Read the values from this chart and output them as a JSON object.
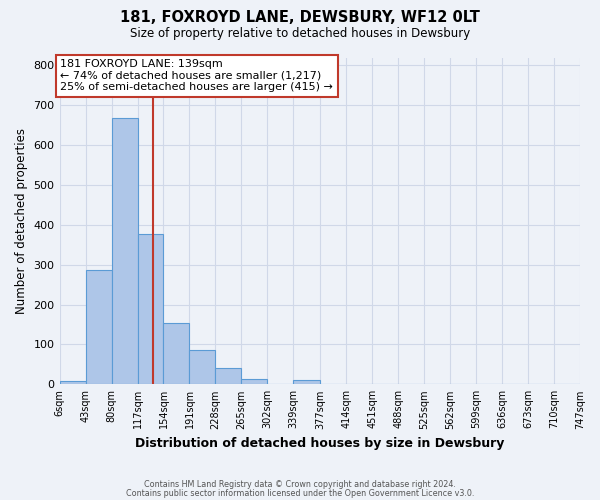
{
  "title": "181, FOXROYD LANE, DEWSBURY, WF12 0LT",
  "subtitle": "Size of property relative to detached houses in Dewsbury",
  "xlabel": "Distribution of detached houses by size in Dewsbury",
  "ylabel": "Number of detached properties",
  "bin_edges": [
    6,
    43,
    80,
    117,
    154,
    191,
    228,
    265,
    302,
    339,
    377,
    414,
    451,
    488,
    525,
    562,
    599,
    636,
    673,
    710,
    747
  ],
  "bin_labels": [
    "6sqm",
    "43sqm",
    "80sqm",
    "117sqm",
    "154sqm",
    "191sqm",
    "228sqm",
    "265sqm",
    "302sqm",
    "339sqm",
    "377sqm",
    "414sqm",
    "451sqm",
    "488sqm",
    "525sqm",
    "562sqm",
    "599sqm",
    "636sqm",
    "673sqm",
    "710sqm",
    "747sqm"
  ],
  "bar_heights": [
    8,
    288,
    668,
    378,
    153,
    86,
    41,
    13,
    0,
    10,
    0,
    0,
    0,
    0,
    0,
    0,
    0,
    0,
    0,
    0
  ],
  "bar_color": "#aec6e8",
  "bar_edge_color": "#5b9bd5",
  "vline_x": 139,
  "vline_color": "#c0392b",
  "annotation_text": "181 FOXROYD LANE: 139sqm\n← 74% of detached houses are smaller (1,217)\n25% of semi-detached houses are larger (415) →",
  "annotation_box_color": "#ffffff",
  "annotation_box_edge_color": "#c0392b",
  "ylim": [
    0,
    820
  ],
  "yticks": [
    0,
    100,
    200,
    300,
    400,
    500,
    600,
    700,
    800
  ],
  "grid_color": "#d0d8e8",
  "bg_color": "#eef2f8",
  "footer_line1": "Contains HM Land Registry data © Crown copyright and database right 2024.",
  "footer_line2": "Contains public sector information licensed under the Open Government Licence v3.0."
}
